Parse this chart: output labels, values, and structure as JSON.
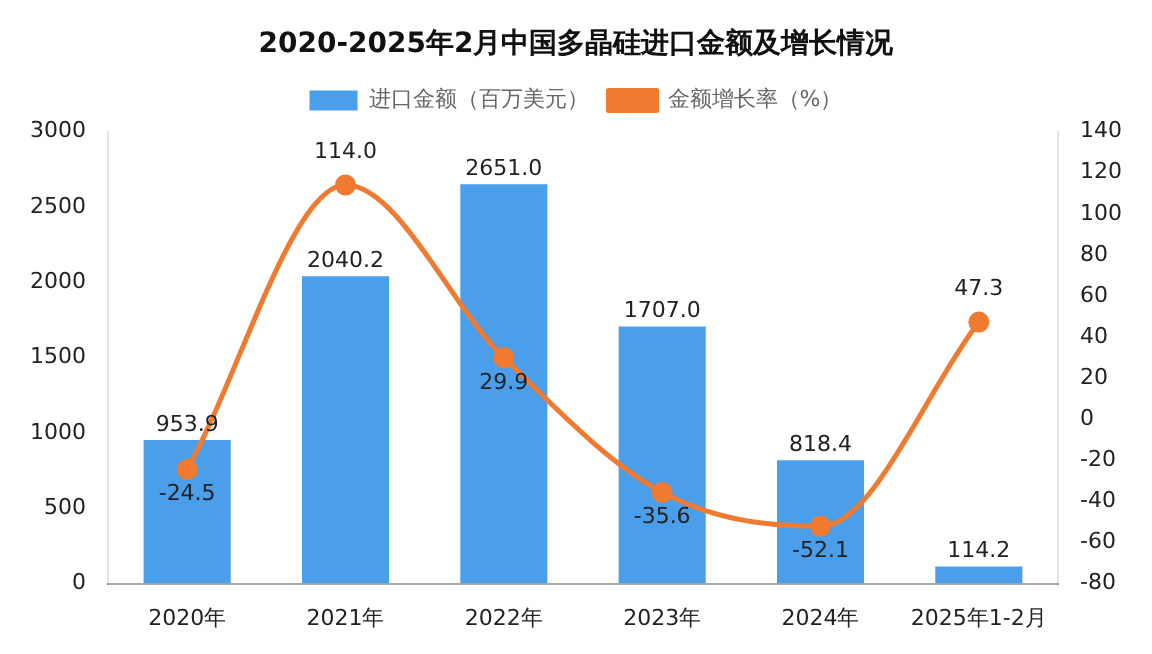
{
  "chart_data": {
    "type": "bar",
    "title": "2020-2025年2月中国多晶硅进口金额及增长情况",
    "categories": [
      "2020年",
      "2021年",
      "2022年",
      "2023年",
      "2024年",
      "2025年1-2月"
    ],
    "series": [
      {
        "name": "进口金额（百万美元）",
        "color": "#4b9eea",
        "values": [
          953.9,
          2040.2,
          2651.0,
          1707.0,
          818.4,
          114.2
        ],
        "value_labels": [
          "953.9",
          "2040.2",
          "2651.0",
          "1707.0",
          "818.4",
          "114.2"
        ]
      },
      {
        "name": "金额增长率（%）",
        "type": "line",
        "axis": "y2",
        "color": "#f07a30",
        "values": [
          -24.5,
          114.0,
          29.9,
          -35.6,
          -52.1,
          47.3
        ],
        "value_labels": [
          "-24.5",
          "114.0",
          "29.9",
          "-35.6",
          "-52.1",
          "47.3"
        ]
      }
    ],
    "ylim": [
      0,
      3000
    ],
    "yticks": [
      0,
      500,
      1000,
      1500,
      2000,
      2500,
      3000
    ],
    "y2lim": [
      -80,
      140
    ],
    "y2ticks": [
      -80,
      -60,
      -40,
      -20,
      0,
      20,
      40,
      60,
      80,
      100,
      120,
      140
    ],
    "legend": "top",
    "marker": "circle",
    "grid": false
  }
}
